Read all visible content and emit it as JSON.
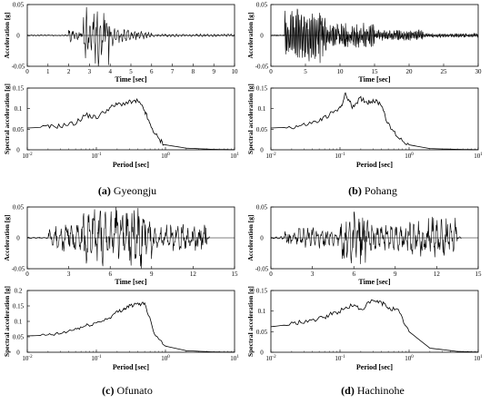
{
  "panels": [
    {
      "letter": "(a)",
      "name": "Gyeongju",
      "time_history": {
        "xlabel": "Time [sec]",
        "ylabel": "Acceleration [g]",
        "xlim": [
          0,
          10
        ],
        "ylim": [
          -0.05,
          0.05
        ],
        "xticks": [
          "0",
          "1",
          "2",
          "3",
          "4",
          "5",
          "6",
          "7",
          "8",
          "9",
          "10"
        ],
        "yticks": [
          "-0.05",
          "0",
          "0.05"
        ],
        "peak": 0.05
      },
      "spectrum": {
        "xlabel": "Period [sec]",
        "ylabel": "Spectral acceleration [g]",
        "xlim_log10": [
          -2,
          1
        ],
        "ylim": [
          0,
          0.15
        ],
        "xticks": [
          "10^-2",
          "10^-1",
          "10^0",
          "10^1"
        ],
        "yticks": [
          "0",
          "0.05",
          "0.1",
          "0.15"
        ],
        "period": [
          0.01,
          0.02,
          0.03,
          0.05,
          0.07,
          0.1,
          0.15,
          0.2,
          0.3,
          0.4,
          0.5,
          0.6,
          0.8,
          1.0,
          2.0,
          5.0,
          10.0
        ],
        "sa": [
          0.053,
          0.055,
          0.058,
          0.065,
          0.085,
          0.078,
          0.1,
          0.11,
          0.115,
          0.118,
          0.095,
          0.06,
          0.025,
          0.012,
          0.004,
          0.001,
          0.0005
        ]
      }
    },
    {
      "letter": "(b)",
      "name": "Pohang",
      "time_history": {
        "xlabel": "Time [sec]",
        "ylabel": "Acceleration [g]",
        "xlim": [
          0,
          30
        ],
        "ylim": [
          -0.05,
          0.05
        ],
        "xticks": [
          "0",
          "5",
          "10",
          "15",
          "20",
          "25",
          "30"
        ],
        "yticks": [
          "-0.05",
          "0",
          "0.05"
        ],
        "peak": 0.055
      },
      "spectrum": {
        "xlabel": "Period [sec]",
        "ylabel": "Spectral acceleration [g]",
        "xlim_log10": [
          -2,
          1
        ],
        "ylim": [
          0,
          0.15
        ],
        "xticks": [
          "10^-2",
          "10^-1",
          "10^0",
          "10^1"
        ],
        "yticks": [
          "0",
          "0.05",
          "0.1",
          "0.15"
        ],
        "period": [
          0.01,
          0.02,
          0.03,
          0.05,
          0.07,
          0.1,
          0.12,
          0.15,
          0.2,
          0.25,
          0.3,
          0.4,
          0.5,
          0.7,
          1.0,
          2.0,
          5.0,
          10.0
        ],
        "sa": [
          0.053,
          0.055,
          0.06,
          0.07,
          0.085,
          0.1,
          0.135,
          0.105,
          0.125,
          0.115,
          0.12,
          0.11,
          0.06,
          0.03,
          0.012,
          0.003,
          0.001,
          0.0005
        ]
      }
    },
    {
      "letter": "(c)",
      "name": "Ofunato",
      "time_history": {
        "xlabel": "Time [sec]",
        "ylabel": "Acceleration [g]",
        "xlim": [
          0,
          15
        ],
        "ylim": [
          -0.05,
          0.05
        ],
        "xticks": [
          "0",
          "3",
          "6",
          "9",
          "12",
          "15"
        ],
        "yticks": [
          "-0.05",
          "0",
          "0.05"
        ],
        "peak": 0.05
      },
      "spectrum": {
        "xlabel": "Period [sec]",
        "ylabel": "Spectral acceleration [g]",
        "xlim_log10": [
          -2,
          1
        ],
        "ylim": [
          0,
          0.2
        ],
        "xticks": [
          "10^-2",
          "10^-1",
          "10^0",
          "10^1"
        ],
        "yticks": [
          "0",
          "0.05",
          "0.1",
          "0.15",
          "0.2"
        ],
        "period": [
          0.01,
          0.02,
          0.03,
          0.05,
          0.07,
          0.1,
          0.15,
          0.2,
          0.25,
          0.3,
          0.4,
          0.5,
          0.7,
          1.0,
          2.0,
          5.0,
          10.0
        ],
        "sa": [
          0.053,
          0.055,
          0.06,
          0.075,
          0.085,
          0.095,
          0.11,
          0.13,
          0.14,
          0.15,
          0.155,
          0.16,
          0.06,
          0.02,
          0.005,
          0.001,
          0.0005
        ]
      }
    },
    {
      "letter": "(d)",
      "name": "Hachinohe",
      "time_history": {
        "xlabel": "Time [sec]",
        "ylabel": "Acceleration [g]",
        "xlim": [
          0,
          15
        ],
        "ylim": [
          -0.05,
          0.05
        ],
        "xticks": [
          "0",
          "3",
          "6",
          "9",
          "12",
          "15"
        ],
        "yticks": [
          "-0.05",
          "0",
          "0.05"
        ],
        "peak": 0.05
      },
      "spectrum": {
        "xlabel": "Period [sec]",
        "ylabel": "Spectral acceleration [g]",
        "xlim_log10": [
          -2,
          1
        ],
        "ylim": [
          0,
          0.15
        ],
        "xticks": [
          "10^-2",
          "10^-1",
          "10^0",
          "10^1"
        ],
        "yticks": [
          "0",
          "0.05",
          "0.1",
          "0.15"
        ],
        "period": [
          0.01,
          0.02,
          0.03,
          0.05,
          0.07,
          0.1,
          0.15,
          0.2,
          0.3,
          0.4,
          0.5,
          0.7,
          1.0,
          2.0,
          5.0,
          10.0
        ],
        "sa": [
          0.062,
          0.068,
          0.075,
          0.08,
          0.09,
          0.1,
          0.115,
          0.105,
          0.125,
          0.12,
          0.11,
          0.1,
          0.05,
          0.01,
          0.002,
          0.0005
        ]
      }
    }
  ],
  "chart_data": [
    {
      "type": "line",
      "panel": "(a) Gyeongju time history",
      "xlabel": "Time [sec]",
      "ylabel": "Acceleration [g]",
      "xlim": [
        0,
        10
      ],
      "ylim": [
        -0.05,
        0.05
      ]
    },
    {
      "type": "line",
      "panel": "(a) Gyeongju spectrum",
      "xlabel": "Period [sec]",
      "ylabel": "Spectral acceleration [g]",
      "xscale": "log",
      "xlim": [
        0.01,
        10
      ],
      "ylim": [
        0,
        0.15
      ]
    },
    {
      "type": "line",
      "panel": "(b) Pohang time history",
      "xlabel": "Time [sec]",
      "ylabel": "Acceleration [g]",
      "xlim": [
        0,
        30
      ],
      "ylim": [
        -0.05,
        0.05
      ]
    },
    {
      "type": "line",
      "panel": "(b) Pohang spectrum",
      "xlabel": "Period [sec]",
      "ylabel": "Spectral acceleration [g]",
      "xscale": "log",
      "xlim": [
        0.01,
        10
      ],
      "ylim": [
        0,
        0.15
      ]
    },
    {
      "type": "line",
      "panel": "(c) Ofunato time history",
      "xlabel": "Time [sec]",
      "ylabel": "Acceleration [g]",
      "xlim": [
        0,
        15
      ],
      "ylim": [
        -0.05,
        0.05
      ]
    },
    {
      "type": "line",
      "panel": "(c) Ofunato spectrum",
      "xlabel": "Period [sec]",
      "ylabel": "Spectral acceleration [g]",
      "xscale": "log",
      "xlim": [
        0.01,
        10
      ],
      "ylim": [
        0,
        0.2
      ]
    },
    {
      "type": "line",
      "panel": "(d) Hachinohe time history",
      "xlabel": "Time [sec]",
      "ylabel": "Acceleration [g]",
      "xlim": [
        0,
        15
      ],
      "ylim": [
        -0.05,
        0.05
      ]
    },
    {
      "type": "line",
      "panel": "(d) Hachinohe spectrum",
      "xlabel": "Period [sec]",
      "ylabel": "Spectral acceleration [g]",
      "xscale": "log",
      "xlim": [
        0.01,
        10
      ],
      "ylim": [
        0,
        0.15
      ]
    }
  ]
}
